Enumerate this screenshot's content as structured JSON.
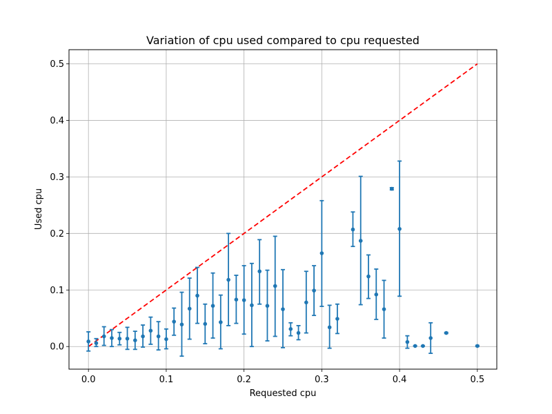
{
  "chart_data": {
    "type": "scatter",
    "title": "Variation of cpu used compared to cpu requested",
    "xlabel": "Requested cpu",
    "ylabel": "Used cpu",
    "xlim": [
      -0.025,
      0.525
    ],
    "ylim": [
      -0.04,
      0.525
    ],
    "xticks": [
      0.0,
      0.1,
      0.2,
      0.3,
      0.4,
      0.5
    ],
    "yticks": [
      0.0,
      0.1,
      0.2,
      0.3,
      0.4,
      0.5
    ],
    "xtick_labels": [
      "0.0",
      "0.1",
      "0.2",
      "0.3",
      "0.4",
      "0.5"
    ],
    "ytick_labels": [
      "0.0",
      "0.1",
      "0.2",
      "0.3",
      "0.4",
      "0.5"
    ],
    "grid": true,
    "colors": {
      "points": "#1f77b4",
      "reference_line": "#ff0000"
    },
    "reference_line": {
      "style": "dashed",
      "x": [
        0.0,
        0.5
      ],
      "y": [
        0.0,
        0.5
      ]
    },
    "series": [
      {
        "points": [
          {
            "x": 0.0,
            "y": 0.009,
            "low": -0.008,
            "high": 0.026
          },
          {
            "x": 0.01,
            "y": 0.006,
            "low": 0.0,
            "high": 0.014
          },
          {
            "x": 0.02,
            "y": 0.018,
            "low": 0.002,
            "high": 0.035
          },
          {
            "x": 0.03,
            "y": 0.015,
            "low": 0.0,
            "high": 0.03
          },
          {
            "x": 0.04,
            "y": 0.014,
            "low": 0.003,
            "high": 0.025
          },
          {
            "x": 0.05,
            "y": 0.014,
            "low": -0.005,
            "high": 0.034
          },
          {
            "x": 0.06,
            "y": 0.011,
            "low": -0.005,
            "high": 0.027
          },
          {
            "x": 0.07,
            "y": 0.018,
            "low": -0.001,
            "high": 0.038
          },
          {
            "x": 0.08,
            "y": 0.028,
            "low": 0.004,
            "high": 0.052
          },
          {
            "x": 0.09,
            "y": 0.018,
            "low": -0.006,
            "high": 0.044
          },
          {
            "x": 0.1,
            "y": 0.013,
            "low": -0.004,
            "high": 0.031
          },
          {
            "x": 0.11,
            "y": 0.044,
            "low": 0.02,
            "high": 0.068
          },
          {
            "x": 0.12,
            "y": 0.039,
            "low": -0.017,
            "high": 0.096
          },
          {
            "x": 0.13,
            "y": 0.067,
            "low": 0.013,
            "high": 0.121
          },
          {
            "x": 0.14,
            "y": 0.09,
            "low": 0.041,
            "high": 0.14
          },
          {
            "x": 0.15,
            "y": 0.04,
            "low": 0.005,
            "high": 0.075
          },
          {
            "x": 0.16,
            "y": 0.072,
            "low": 0.015,
            "high": 0.13
          },
          {
            "x": 0.17,
            "y": 0.043,
            "low": -0.004,
            "high": 0.091
          },
          {
            "x": 0.18,
            "y": 0.118,
            "low": 0.037,
            "high": 0.2
          },
          {
            "x": 0.19,
            "y": 0.083,
            "low": 0.041,
            "high": 0.126
          },
          {
            "x": 0.2,
            "y": 0.082,
            "low": 0.022,
            "high": 0.143
          },
          {
            "x": 0.21,
            "y": 0.073,
            "low": 0.0,
            "high": 0.147
          },
          {
            "x": 0.22,
            "y": 0.133,
            "low": 0.075,
            "high": 0.189
          },
          {
            "x": 0.23,
            "y": 0.072,
            "low": 0.01,
            "high": 0.135
          },
          {
            "x": 0.24,
            "y": 0.107,
            "low": 0.018,
            "high": 0.195
          },
          {
            "x": 0.25,
            "y": 0.066,
            "low": -0.002,
            "high": 0.136
          },
          {
            "x": 0.26,
            "y": 0.031,
            "low": 0.019,
            "high": 0.042
          },
          {
            "x": 0.27,
            "y": 0.024,
            "low": 0.012,
            "high": 0.037
          },
          {
            "x": 0.28,
            "y": 0.078,
            "low": 0.024,
            "high": 0.133
          },
          {
            "x": 0.29,
            "y": 0.099,
            "low": 0.055,
            "high": 0.143
          },
          {
            "x": 0.3,
            "y": 0.165,
            "low": 0.071,
            "high": 0.258
          },
          {
            "x": 0.31,
            "y": 0.034,
            "low": -0.003,
            "high": 0.073
          },
          {
            "x": 0.32,
            "y": 0.049,
            "low": 0.023,
            "high": 0.075
          },
          {
            "x": 0.34,
            "y": 0.207,
            "low": 0.177,
            "high": 0.238
          },
          {
            "x": 0.35,
            "y": 0.187,
            "low": 0.074,
            "high": 0.301
          },
          {
            "x": 0.36,
            "y": 0.124,
            "low": 0.085,
            "high": 0.162
          },
          {
            "x": 0.37,
            "y": 0.092,
            "low": 0.048,
            "high": 0.137
          },
          {
            "x": 0.38,
            "y": 0.066,
            "low": 0.015,
            "high": 0.117
          },
          {
            "x": 0.39,
            "y": 0.279,
            "low": 0.277,
            "high": 0.281
          },
          {
            "x": 0.4,
            "y": 0.208,
            "low": 0.089,
            "high": 0.328
          },
          {
            "x": 0.41,
            "y": 0.008,
            "low": -0.003,
            "high": 0.019
          },
          {
            "x": 0.42,
            "y": 0.001,
            "low": 0.001,
            "high": 0.001
          },
          {
            "x": 0.43,
            "y": 0.001,
            "low": 0.001,
            "high": 0.001
          },
          {
            "x": 0.44,
            "y": 0.015,
            "low": -0.012,
            "high": 0.042
          },
          {
            "x": 0.46,
            "y": 0.024,
            "low": 0.023,
            "high": 0.025
          },
          {
            "x": 0.5,
            "y": 0.001,
            "low": 0.0,
            "high": 0.002
          }
        ]
      }
    ]
  }
}
